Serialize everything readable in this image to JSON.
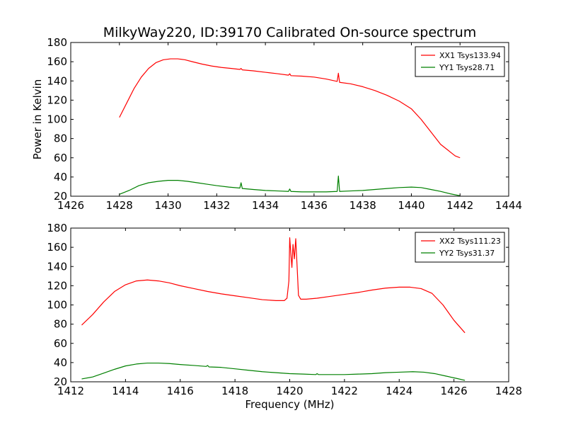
{
  "chart_data": [
    {
      "type": "line",
      "title": "MilkyWay220, ID:39170 Calibrated On-source spectrum",
      "xlabel": "",
      "ylabel": "Power in Kelvin",
      "xlim": [
        1426,
        1444
      ],
      "ylim": [
        20,
        180
      ],
      "xticks": [
        1426,
        1428,
        1430,
        1432,
        1434,
        1436,
        1438,
        1440,
        1442,
        1444
      ],
      "yticks": [
        20,
        40,
        60,
        80,
        100,
        120,
        140,
        160,
        180
      ],
      "grid": false,
      "legend": "top-right",
      "series": [
        {
          "name": "XX1 Tsys133.94",
          "color": "#ff0000",
          "points": [
            [
              1428.0,
              102
            ],
            [
              1428.3,
              117
            ],
            [
              1428.6,
              132
            ],
            [
              1428.9,
              144
            ],
            [
              1429.2,
              153
            ],
            [
              1429.5,
              159
            ],
            [
              1429.8,
              162
            ],
            [
              1430.1,
              163
            ],
            [
              1430.4,
              163
            ],
            [
              1430.7,
              162
            ],
            [
              1431.0,
              160
            ],
            [
              1431.4,
              157.5
            ],
            [
              1431.8,
              155.5
            ],
            [
              1432.2,
              154
            ],
            [
              1432.6,
              153
            ],
            [
              1432.95,
              152
            ],
            [
              1433.0,
              153
            ],
            [
              1433.05,
              151.5
            ],
            [
              1433.5,
              150.5
            ],
            [
              1434.0,
              149
            ],
            [
              1434.5,
              147.5
            ],
            [
              1434.95,
              146
            ],
            [
              1435.0,
              147.5
            ],
            [
              1435.05,
              145.5
            ],
            [
              1435.5,
              145
            ],
            [
              1436.0,
              144
            ],
            [
              1436.5,
              142
            ],
            [
              1436.95,
              139.5
            ],
            [
              1437.0,
              148
            ],
            [
              1437.05,
              138.5
            ],
            [
              1437.5,
              137
            ],
            [
              1438.0,
              134
            ],
            [
              1438.5,
              130
            ],
            [
              1439.0,
              125
            ],
            [
              1439.5,
              119
            ],
            [
              1440.0,
              111
            ],
            [
              1440.4,
              100
            ],
            [
              1440.8,
              87
            ],
            [
              1441.2,
              74
            ],
            [
              1441.5,
              68
            ],
            [
              1441.8,
              62
            ],
            [
              1442.0,
              60
            ]
          ]
        },
        {
          "name": "YY1 Tsys28.71",
          "color": "#008000",
          "points": [
            [
              1428.0,
              22
            ],
            [
              1428.4,
              26
            ],
            [
              1428.8,
              31
            ],
            [
              1429.2,
              34
            ],
            [
              1429.6,
              35.5
            ],
            [
              1430.0,
              36.5
            ],
            [
              1430.4,
              36.5
            ],
            [
              1430.8,
              35.5
            ],
            [
              1431.2,
              34
            ],
            [
              1431.6,
              32.5
            ],
            [
              1432.0,
              31
            ],
            [
              1432.5,
              29.5
            ],
            [
              1432.95,
              28.5
            ],
            [
              1433.0,
              34
            ],
            [
              1433.05,
              28
            ],
            [
              1433.5,
              27
            ],
            [
              1434.0,
              26
            ],
            [
              1434.5,
              25.5
            ],
            [
              1434.95,
              25
            ],
            [
              1435.0,
              27.5
            ],
            [
              1435.05,
              25
            ],
            [
              1435.5,
              24.5
            ],
            [
              1436.0,
              24.5
            ],
            [
              1436.5,
              24.5
            ],
            [
              1436.95,
              25
            ],
            [
              1437.0,
              41
            ],
            [
              1437.05,
              25
            ],
            [
              1437.5,
              25.5
            ],
            [
              1438.0,
              26
            ],
            [
              1438.5,
              27
            ],
            [
              1439.0,
              28
            ],
            [
              1439.5,
              29
            ],
            [
              1440.0,
              29.5
            ],
            [
              1440.4,
              29
            ],
            [
              1440.8,
              27
            ],
            [
              1441.2,
              25
            ],
            [
              1441.6,
              22.5
            ],
            [
              1442.0,
              20.5
            ]
          ]
        }
      ]
    },
    {
      "type": "line",
      "title": "",
      "xlabel": "Frequency (MHz)",
      "ylabel": "",
      "xlim": [
        1412,
        1428
      ],
      "ylim": [
        20,
        180
      ],
      "xticks": [
        1412,
        1414,
        1416,
        1418,
        1420,
        1422,
        1424,
        1426,
        1428
      ],
      "yticks": [
        20,
        40,
        60,
        80,
        100,
        120,
        140,
        160,
        180
      ],
      "grid": false,
      "legend": "top-right",
      "series": [
        {
          "name": "XX2 Tsys111.23",
          "color": "#ff0000",
          "points": [
            [
              1412.4,
              79
            ],
            [
              1412.8,
              90
            ],
            [
              1413.2,
              103
            ],
            [
              1413.6,
              114
            ],
            [
              1414.0,
              121
            ],
            [
              1414.4,
              125
            ],
            [
              1414.8,
              126
            ],
            [
              1415.2,
              125
            ],
            [
              1415.6,
              123
            ],
            [
              1416.0,
              120
            ],
            [
              1416.5,
              117
            ],
            [
              1417.0,
              114
            ],
            [
              1417.5,
              111.5
            ],
            [
              1418.0,
              109.5
            ],
            [
              1418.5,
              107.5
            ],
            [
              1419.0,
              105.5
            ],
            [
              1419.5,
              104.5
            ],
            [
              1419.8,
              104.5
            ],
            [
              1419.9,
              107
            ],
            [
              1419.97,
              125
            ],
            [
              1420.0,
              170
            ],
            [
              1420.05,
              150
            ],
            [
              1420.08,
              139
            ],
            [
              1420.12,
              163
            ],
            [
              1420.17,
              148
            ],
            [
              1420.22,
              169
            ],
            [
              1420.27,
              140
            ],
            [
              1420.32,
              110
            ],
            [
              1420.4,
              106
            ],
            [
              1420.6,
              106
            ],
            [
              1421.0,
              107
            ],
            [
              1421.5,
              109
            ],
            [
              1422.0,
              111
            ],
            [
              1422.5,
              113
            ],
            [
              1423.0,
              115.5
            ],
            [
              1423.5,
              117.5
            ],
            [
              1424.0,
              118.5
            ],
            [
              1424.4,
              118.5
            ],
            [
              1424.8,
              117
            ],
            [
              1425.2,
              112
            ],
            [
              1425.6,
              100
            ],
            [
              1426.0,
              84
            ],
            [
              1426.4,
              71
            ]
          ]
        },
        {
          "name": "YY2 Tsys31.37",
          "color": "#008000",
          "points": [
            [
              1412.4,
              23
            ],
            [
              1412.8,
              25
            ],
            [
              1413.2,
              29
            ],
            [
              1413.6,
              33
            ],
            [
              1414.0,
              36.5
            ],
            [
              1414.4,
              38.5
            ],
            [
              1414.8,
              39.5
            ],
            [
              1415.2,
              39.5
            ],
            [
              1415.6,
              39
            ],
            [
              1416.0,
              38
            ],
            [
              1416.5,
              37
            ],
            [
              1416.95,
              36
            ],
            [
              1417.0,
              37
            ],
            [
              1417.05,
              35.5
            ],
            [
              1417.5,
              35
            ],
            [
              1418.0,
              33.5
            ],
            [
              1418.5,
              32
            ],
            [
              1419.0,
              30.5
            ],
            [
              1419.5,
              29.5
            ],
            [
              1420.0,
              28.5
            ],
            [
              1420.5,
              28
            ],
            [
              1420.95,
              27.5
            ],
            [
              1421.0,
              28.5
            ],
            [
              1421.05,
              27.5
            ],
            [
              1421.5,
              27.5
            ],
            [
              1422.0,
              27.5
            ],
            [
              1422.5,
              28
            ],
            [
              1423.0,
              28.5
            ],
            [
              1423.5,
              29.5
            ],
            [
              1424.0,
              30
            ],
            [
              1424.5,
              30.5
            ],
            [
              1424.9,
              30
            ],
            [
              1425.3,
              28.5
            ],
            [
              1425.7,
              26
            ],
            [
              1426.1,
              23.5
            ],
            [
              1426.4,
              21.5
            ]
          ]
        }
      ]
    }
  ]
}
